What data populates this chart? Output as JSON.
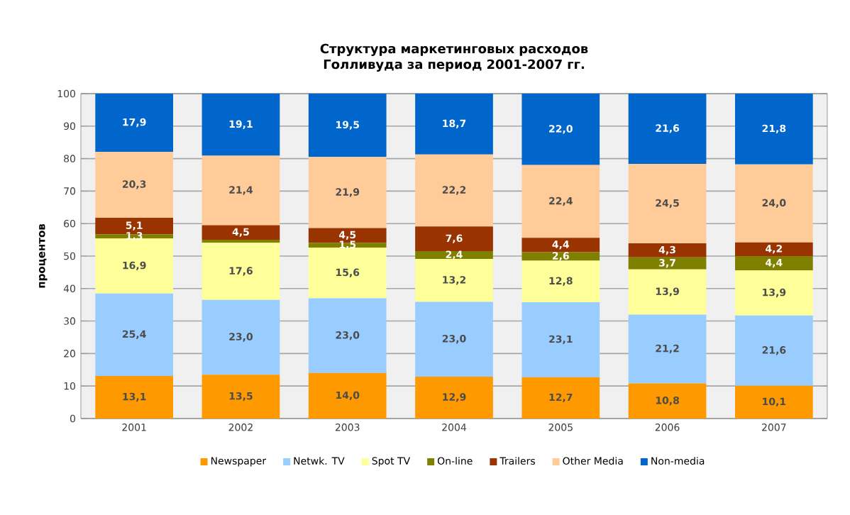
{
  "chart_data": {
    "type": "bar",
    "stacked": true,
    "title": "Структура маркетинговых расходов Голливуда за период 2001-2007 гг.",
    "ylabel": "процентов",
    "categories": [
      "2001",
      "2002",
      "2003",
      "2004",
      "2005",
      "2006",
      "2007"
    ],
    "ylim": [
      0,
      100
    ],
    "yticks": [
      0,
      10,
      20,
      30,
      40,
      50,
      60,
      70,
      80,
      90,
      100
    ],
    "grid": "y",
    "legend": "bottom",
    "series": [
      {
        "name": "Newspaper",
        "color": "#ff9900",
        "values": [
          13.1,
          13.5,
          14.0,
          12.9,
          12.7,
          10.8,
          10.1
        ],
        "value_labels": [
          "13,1",
          "13,5",
          "14,0",
          "12,9",
          "12,7",
          "10,8",
          "10,1"
        ]
      },
      {
        "name": "Netwk. TV",
        "color": "#99ccff",
        "values": [
          25.4,
          23.0,
          23.0,
          23.0,
          23.1,
          21.2,
          21.6
        ],
        "value_labels": [
          "25,4",
          "23,0",
          "23,0",
          "23,0",
          "23,1",
          "21,2",
          "21,6"
        ]
      },
      {
        "name": "Spot TV",
        "color": "#ffff99",
        "values": [
          16.9,
          17.6,
          15.6,
          13.2,
          12.8,
          13.9,
          13.9
        ],
        "value_labels": [
          "16,9",
          "17,6",
          "15,6",
          "13,2",
          "12,8",
          "13,9",
          "13,9"
        ]
      },
      {
        "name": "On-line",
        "color": "#808000",
        "values": [
          1.3,
          0.9,
          1.5,
          2.4,
          2.6,
          3.7,
          4.4
        ],
        "value_labels": [
          "1,3",
          null,
          "1,5",
          "2,4",
          "2,6",
          "3,7",
          "4,4"
        ]
      },
      {
        "name": "Trailers",
        "color": "#993300",
        "values": [
          5.1,
          4.5,
          4.5,
          7.6,
          4.4,
          4.3,
          4.2
        ],
        "value_labels": [
          "5,1",
          "4,5",
          "4,5",
          "7,6",
          "4,4",
          "4,3",
          "4,2"
        ]
      },
      {
        "name": "Other Media",
        "color": "#ffcc99",
        "values": [
          20.3,
          21.4,
          21.9,
          22.2,
          22.4,
          24.5,
          24.0
        ],
        "value_labels": [
          "20,3",
          "21,4",
          "21,9",
          "22,2",
          "22,4",
          "24,5",
          "24,0"
        ]
      },
      {
        "name": "Non-media",
        "color": "#0066cc",
        "values": [
          17.9,
          19.1,
          19.5,
          18.7,
          22.0,
          21.6,
          21.8
        ],
        "value_labels": [
          "17,9",
          "19,1",
          "19,5",
          "18,7",
          "22,0",
          "21,6",
          "21,8"
        ]
      }
    ]
  }
}
